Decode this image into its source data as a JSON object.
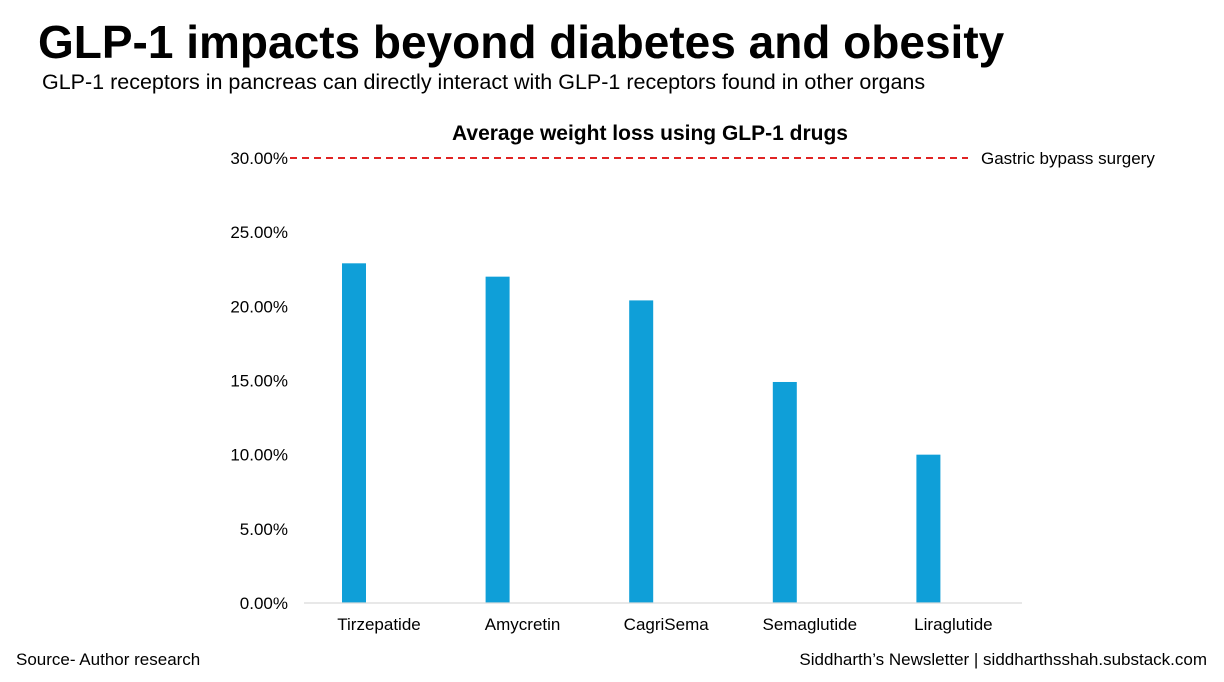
{
  "header": {
    "title": "GLP-1 impacts beyond diabetes and obesity",
    "subtitle": "GLP-1 receptors in pancreas can directly interact with GLP-1 receptors found in other organs"
  },
  "chart_data": {
    "type": "bar",
    "title": "Average weight loss using GLP-1 drugs",
    "categories": [
      "Tirzepatide",
      "Amycretin",
      "CagriSema",
      "Semaglutide",
      "Liraglutide"
    ],
    "values": [
      22.9,
      22.0,
      20.4,
      14.9,
      10.0
    ],
    "yticks": [
      "0.00%",
      "5.00%",
      "10.00%",
      "15.00%",
      "20.00%",
      "25.00%",
      "30.00%"
    ],
    "ylim": [
      0,
      30
    ],
    "bar_color": "#0f9fd8",
    "reference_line": {
      "value": 30,
      "label": "Gastric bypass surgery",
      "color": "#e02424"
    },
    "grid": false,
    "legend": "none"
  },
  "footer": {
    "source": "Source- Author research",
    "credit": "Siddharth’s Newsletter | siddharthsshah.substack.com"
  }
}
